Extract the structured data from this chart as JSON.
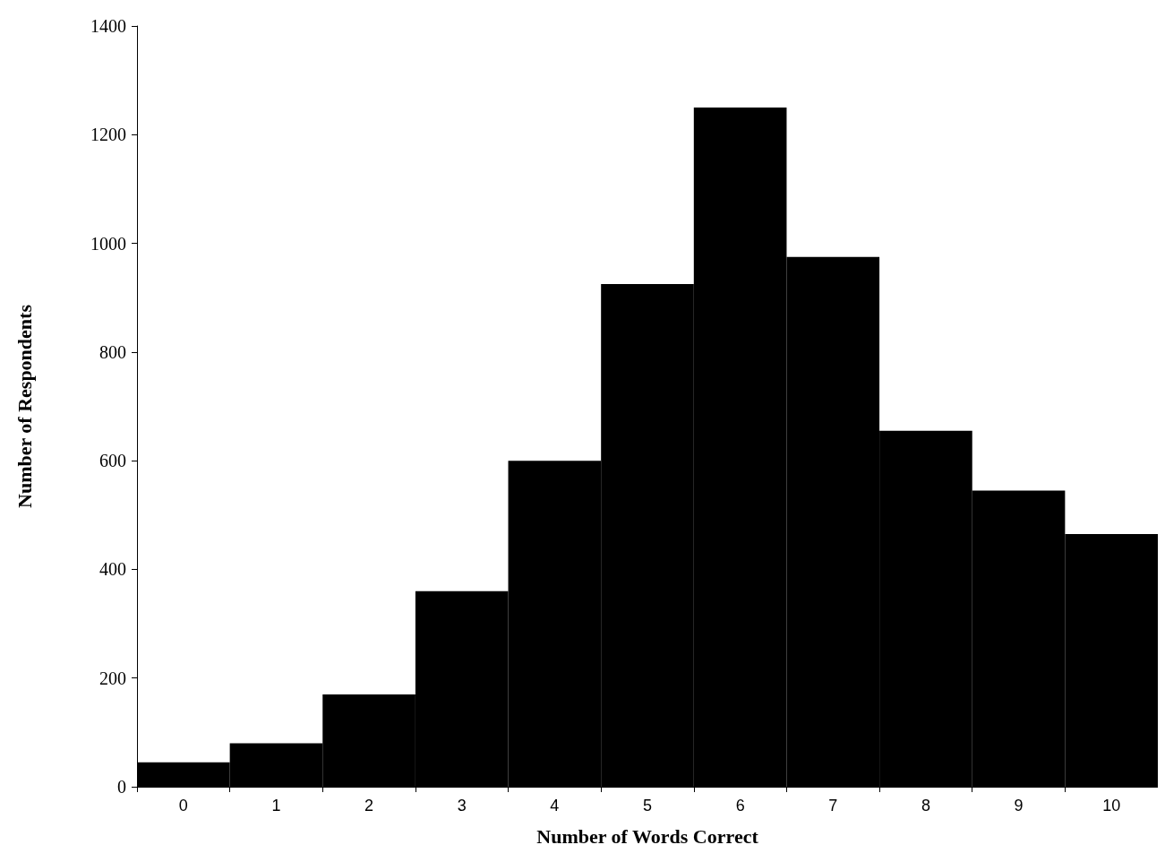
{
  "chart_data": {
    "type": "bar",
    "xlabel": "Number of Words Correct",
    "ylabel": "Number of Respondents",
    "categories": [
      "0",
      "1",
      "2",
      "3",
      "4",
      "5",
      "6",
      "7",
      "8",
      "9",
      "10"
    ],
    "values": [
      45,
      80,
      170,
      360,
      600,
      925,
      1250,
      975,
      655,
      545,
      465
    ],
    "color": "#000000",
    "ylim": [
      0,
      1400
    ],
    "yticks": [
      0,
      200,
      400,
      600,
      800,
      1000,
      1200,
      1400
    ],
    "grid": false
  }
}
